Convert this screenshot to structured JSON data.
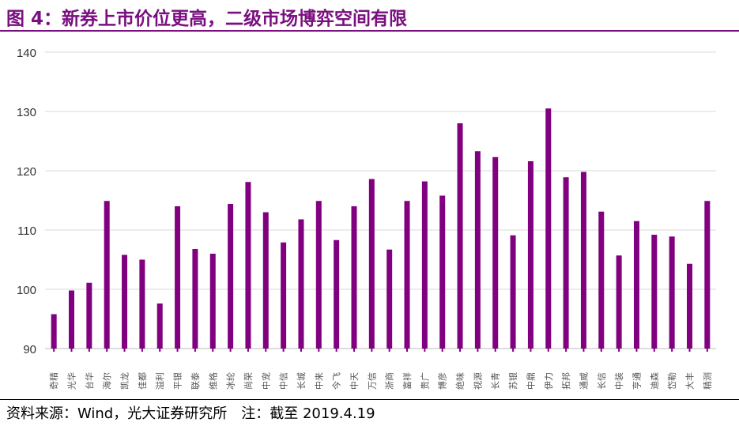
{
  "title": "图 4：新券上市价位更高，二级市场博弈空间有限",
  "footer": "资料来源：Wind，光大证券研究所　注：截至 2019.4.19",
  "chart_data": {
    "type": "bar",
    "categories": [
      "奇精",
      "光华",
      "台华",
      "海尔",
      "凯龙",
      "佳都",
      "溢利",
      "平银",
      "联泰",
      "维格",
      "冰纶",
      "尚荣",
      "中宠",
      "中信",
      "长城",
      "中来",
      "今飞",
      "中天",
      "万信",
      "浙商",
      "富祥",
      "贵广",
      "博彦",
      "绝味",
      "视源",
      "长青",
      "苏银",
      "中鼎",
      "伊力",
      "拓邦",
      "通威",
      "长信",
      "中装",
      "亨通",
      "迪森",
      "岱勒",
      "大丰",
      "精测"
    ],
    "values": [
      95.8,
      99.8,
      101.1,
      114.9,
      105.8,
      105.0,
      97.6,
      114.0,
      106.8,
      106.0,
      114.4,
      118.1,
      113.0,
      107.9,
      111.8,
      114.9,
      108.3,
      114.0,
      118.6,
      106.7,
      114.9,
      118.2,
      115.8,
      128.0,
      123.3,
      122.3,
      109.1,
      121.6,
      130.5,
      118.9,
      119.8,
      113.1,
      105.7,
      111.5,
      109.2,
      108.9,
      104.3,
      114.9
    ],
    "ylim": [
      90,
      140
    ],
    "yticks": [
      90,
      100,
      110,
      120,
      130,
      140
    ],
    "grid": true,
    "bar_color": "#800080",
    "title": "",
    "xlabel": "",
    "ylabel": ""
  }
}
